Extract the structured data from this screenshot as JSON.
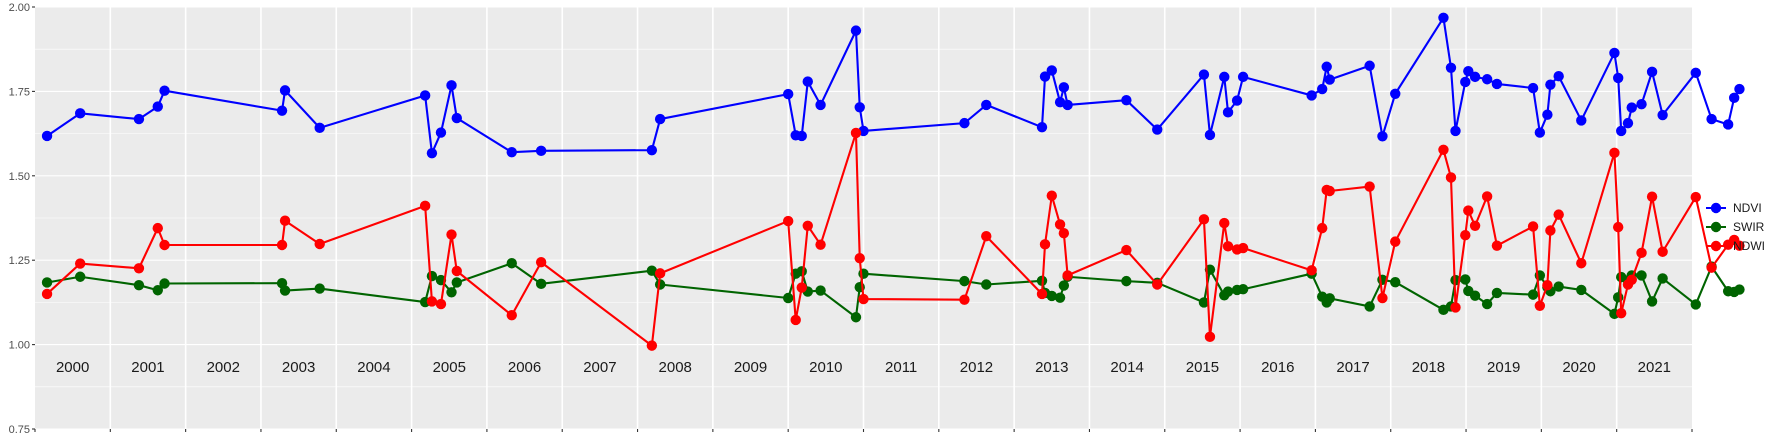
{
  "chart_data": {
    "type": "line",
    "title": "",
    "xlabel": "",
    "ylabel": "",
    "ylim": [
      0.75,
      2.0
    ],
    "xlim": [
      2000.0,
      2022.0
    ],
    "yticks": [
      "0.75",
      "1.00",
      "1.25",
      "1.50",
      "1.75",
      "2.00"
    ],
    "year_labels": [
      "2000",
      "2001",
      "2002",
      "2003",
      "2004",
      "2005",
      "2006",
      "2007",
      "2008",
      "2009",
      "2010",
      "2011",
      "2012",
      "2013",
      "2014",
      "2015",
      "2016",
      "2017",
      "2018",
      "2019",
      "2020",
      "2021"
    ],
    "grid": true,
    "legend_position": "right",
    "series": [
      {
        "name": "NDVI",
        "color": "#0000ff",
        "points": [
          [
            2000.16,
            1.618
          ],
          [
            2000.6,
            1.685
          ],
          [
            2001.38,
            1.668
          ],
          [
            2001.63,
            1.705
          ],
          [
            2001.72,
            1.752
          ],
          [
            2003.28,
            1.693
          ],
          [
            2003.32,
            1.753
          ],
          [
            2003.78,
            1.642
          ],
          [
            2005.18,
            1.738
          ],
          [
            2005.27,
            1.567
          ],
          [
            2005.39,
            1.628
          ],
          [
            2005.53,
            1.768
          ],
          [
            2005.6,
            1.671
          ],
          [
            2006.33,
            1.57
          ],
          [
            2006.72,
            1.574
          ],
          [
            2008.19,
            1.576
          ],
          [
            2008.3,
            1.668
          ],
          [
            2010.0,
            1.742
          ],
          [
            2010.1,
            1.62
          ],
          [
            2010.18,
            1.618
          ],
          [
            2010.26,
            1.779
          ],
          [
            2010.43,
            1.71
          ],
          [
            2010.9,
            1.93
          ],
          [
            2010.95,
            1.703
          ],
          [
            2011.0,
            1.633
          ],
          [
            2012.34,
            1.656
          ],
          [
            2012.63,
            1.71
          ],
          [
            2013.37,
            1.644
          ],
          [
            2013.41,
            1.794
          ],
          [
            2013.5,
            1.812
          ],
          [
            2013.61,
            1.718
          ],
          [
            2013.66,
            1.762
          ],
          [
            2013.71,
            1.71
          ],
          [
            2014.49,
            1.724
          ],
          [
            2014.9,
            1.637
          ],
          [
            2015.52,
            1.8
          ],
          [
            2015.6,
            1.621
          ],
          [
            2015.79,
            1.793
          ],
          [
            2015.84,
            1.688
          ],
          [
            2015.96,
            1.723
          ],
          [
            2016.04,
            1.793
          ],
          [
            2016.95,
            1.738
          ],
          [
            2017.09,
            1.757
          ],
          [
            2017.15,
            1.823
          ],
          [
            2017.19,
            1.785
          ],
          [
            2017.72,
            1.826
          ],
          [
            2017.89,
            1.617
          ],
          [
            2018.06,
            1.743
          ],
          [
            2018.7,
            1.968
          ],
          [
            2018.8,
            1.82
          ],
          [
            2018.86,
            1.633
          ],
          [
            2018.99,
            1.778
          ],
          [
            2019.03,
            1.81
          ],
          [
            2019.12,
            1.793
          ],
          [
            2019.28,
            1.786
          ],
          [
            2019.41,
            1.772
          ],
          [
            2019.89,
            1.76
          ],
          [
            2019.98,
            1.628
          ],
          [
            2020.08,
            1.681
          ],
          [
            2020.12,
            1.77
          ],
          [
            2020.23,
            1.795
          ],
          [
            2020.53,
            1.664
          ],
          [
            2020.97,
            1.864
          ],
          [
            2021.02,
            1.79
          ],
          [
            2021.06,
            1.633
          ],
          [
            2021.15,
            1.656
          ],
          [
            2021.2,
            1.702
          ],
          [
            2021.33,
            1.712
          ],
          [
            2021.47,
            1.808
          ],
          [
            2021.61,
            1.68
          ],
          [
            2022.05,
            1.805
          ],
          [
            2022.26,
            1.668
          ],
          [
            2022.48,
            1.652
          ],
          [
            2022.56,
            1.731
          ],
          [
            2022.63,
            1.757
          ]
        ]
      },
      {
        "name": "SWIR",
        "color": "#006400",
        "points": [
          [
            2000.16,
            1.184
          ],
          [
            2000.6,
            1.201
          ],
          [
            2001.38,
            1.176
          ],
          [
            2001.63,
            1.161
          ],
          [
            2001.72,
            1.181
          ],
          [
            2003.28,
            1.182
          ],
          [
            2003.32,
            1.16
          ],
          [
            2003.78,
            1.166
          ],
          [
            2005.18,
            1.126
          ],
          [
            2005.27,
            1.203
          ],
          [
            2005.39,
            1.191
          ],
          [
            2005.53,
            1.155
          ],
          [
            2005.6,
            1.184
          ],
          [
            2006.33,
            1.241
          ],
          [
            2006.72,
            1.18
          ],
          [
            2008.19,
            1.219
          ],
          [
            2008.3,
            1.178
          ],
          [
            2010.0,
            1.138
          ],
          [
            2010.1,
            1.21
          ],
          [
            2010.18,
            1.217
          ],
          [
            2010.26,
            1.157
          ],
          [
            2010.43,
            1.16
          ],
          [
            2010.9,
            1.081
          ],
          [
            2010.95,
            1.17
          ],
          [
            2011.0,
            1.21
          ],
          [
            2012.34,
            1.188
          ],
          [
            2012.63,
            1.178
          ],
          [
            2013.37,
            1.189
          ],
          [
            2013.41,
            1.153
          ],
          [
            2013.5,
            1.144
          ],
          [
            2013.61,
            1.139
          ],
          [
            2013.66,
            1.175
          ],
          [
            2013.71,
            1.201
          ],
          [
            2014.49,
            1.188
          ],
          [
            2014.9,
            1.183
          ],
          [
            2015.52,
            1.125
          ],
          [
            2015.6,
            1.222
          ],
          [
            2015.79,
            1.146
          ],
          [
            2015.84,
            1.157
          ],
          [
            2015.96,
            1.162
          ],
          [
            2016.04,
            1.164
          ],
          [
            2016.95,
            1.21
          ],
          [
            2017.09,
            1.142
          ],
          [
            2017.15,
            1.125
          ],
          [
            2017.19,
            1.137
          ],
          [
            2017.72,
            1.113
          ],
          [
            2017.89,
            1.192
          ],
          [
            2018.06,
            1.185
          ],
          [
            2018.7,
            1.103
          ],
          [
            2018.8,
            1.113
          ],
          [
            2018.86,
            1.191
          ],
          [
            2018.99,
            1.193
          ],
          [
            2019.03,
            1.159
          ],
          [
            2019.12,
            1.145
          ],
          [
            2019.28,
            1.12
          ],
          [
            2019.41,
            1.153
          ],
          [
            2019.89,
            1.148
          ],
          [
            2019.98,
            1.205
          ],
          [
            2020.08,
            1.17
          ],
          [
            2020.12,
            1.158
          ],
          [
            2020.23,
            1.172
          ],
          [
            2020.53,
            1.162
          ],
          [
            2020.97,
            1.091
          ],
          [
            2021.02,
            1.14
          ],
          [
            2021.06,
            1.2
          ],
          [
            2021.15,
            1.19
          ],
          [
            2021.2,
            1.205
          ],
          [
            2021.33,
            1.205
          ],
          [
            2021.47,
            1.128
          ],
          [
            2021.61,
            1.196
          ],
          [
            2022.05,
            1.119
          ],
          [
            2022.26,
            1.231
          ],
          [
            2022.48,
            1.158
          ],
          [
            2022.56,
            1.156
          ],
          [
            2022.63,
            1.163
          ]
        ]
      },
      {
        "name": "NDWI",
        "color": "#ff0000",
        "points": [
          [
            2000.16,
            1.15
          ],
          [
            2000.6,
            1.24
          ],
          [
            2001.38,
            1.226
          ],
          [
            2001.63,
            1.345
          ],
          [
            2001.72,
            1.295
          ],
          [
            2003.28,
            1.295
          ],
          [
            2003.32,
            1.367
          ],
          [
            2003.78,
            1.298
          ],
          [
            2005.18,
            1.411
          ],
          [
            2005.27,
            1.128
          ],
          [
            2005.39,
            1.12
          ],
          [
            2005.53,
            1.326
          ],
          [
            2005.6,
            1.218
          ],
          [
            2006.33,
            1.087
          ],
          [
            2006.72,
            1.244
          ],
          [
            2008.19,
            0.997
          ],
          [
            2008.3,
            1.211
          ],
          [
            2010.0,
            1.366
          ],
          [
            2010.1,
            1.073
          ],
          [
            2010.18,
            1.169
          ],
          [
            2010.26,
            1.352
          ],
          [
            2010.43,
            1.296
          ],
          [
            2010.9,
            1.627
          ],
          [
            2010.95,
            1.256
          ],
          [
            2011.0,
            1.135
          ],
          [
            2012.34,
            1.133
          ],
          [
            2012.63,
            1.321
          ],
          [
            2013.37,
            1.15
          ],
          [
            2013.41,
            1.297
          ],
          [
            2013.5,
            1.441
          ],
          [
            2013.61,
            1.356
          ],
          [
            2013.66,
            1.33
          ],
          [
            2013.71,
            1.205
          ],
          [
            2014.49,
            1.28
          ],
          [
            2014.9,
            1.178
          ],
          [
            2015.52,
            1.371
          ],
          [
            2015.6,
            1.023
          ],
          [
            2015.79,
            1.36
          ],
          [
            2015.84,
            1.291
          ],
          [
            2015.96,
            1.282
          ],
          [
            2016.04,
            1.286
          ],
          [
            2016.95,
            1.22
          ],
          [
            2017.09,
            1.345
          ],
          [
            2017.15,
            1.458
          ],
          [
            2017.19,
            1.455
          ],
          [
            2017.72,
            1.468
          ],
          [
            2017.89,
            1.138
          ],
          [
            2018.06,
            1.305
          ],
          [
            2018.7,
            1.577
          ],
          [
            2018.8,
            1.495
          ],
          [
            2018.86,
            1.11
          ],
          [
            2018.99,
            1.324
          ],
          [
            2019.03,
            1.397
          ],
          [
            2019.12,
            1.352
          ],
          [
            2019.28,
            1.439
          ],
          [
            2019.41,
            1.293
          ],
          [
            2019.89,
            1.35
          ],
          [
            2019.98,
            1.115
          ],
          [
            2020.08,
            1.176
          ],
          [
            2020.12,
            1.338
          ],
          [
            2020.23,
            1.385
          ],
          [
            2020.53,
            1.241
          ],
          [
            2020.97,
            1.568
          ],
          [
            2021.02,
            1.348
          ],
          [
            2021.06,
            1.093
          ],
          [
            2021.15,
            1.178
          ],
          [
            2021.2,
            1.192
          ],
          [
            2021.33,
            1.272
          ],
          [
            2021.47,
            1.438
          ],
          [
            2021.61,
            1.275
          ],
          [
            2022.05,
            1.437
          ],
          [
            2022.26,
            1.228
          ],
          [
            2022.48,
            1.296
          ],
          [
            2022.56,
            1.31
          ],
          [
            2022.63,
            1.293
          ]
        ]
      }
    ]
  }
}
